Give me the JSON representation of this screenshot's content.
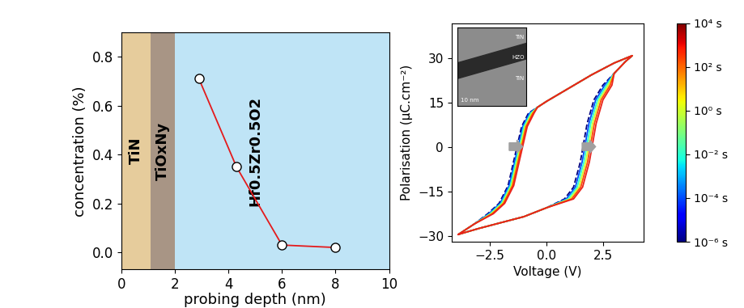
{
  "chart_data": [
    {
      "type": "line",
      "xlabel": "probing depth (nm)",
      "ylabel": "concentration (%)",
      "x": [
        2.9,
        4.3,
        6.0,
        8.0
      ],
      "values": [
        0.71,
        0.35,
        0.03,
        0.02
      ],
      "color": "#e41a1c",
      "marker": "o",
      "xlim": [
        0,
        10
      ],
      "xticks": [
        0,
        2,
        4,
        6,
        8,
        10
      ],
      "ylim": [
        -0.07,
        0.9
      ],
      "yticks": [
        0.0,
        0.2,
        0.4,
        0.6,
        0.8
      ],
      "regions": [
        {
          "label": "TiN",
          "start": 0,
          "end": 1.1,
          "color": "#e6cc9c"
        },
        {
          "label": "TiOxNy",
          "start": 1.1,
          "end": 2,
          "color": "#a89585"
        },
        {
          "label": "Hf0.5Zr0.5O2",
          "start": 2,
          "end": 10,
          "color": "#bfe4f6"
        }
      ]
    },
    {
      "type": "line",
      "xlabel": "Voltage (V)",
      "ylabel": "Polarisation (µC.cm⁻²)",
      "xlim": [
        -4.2,
        4.3
      ],
      "xticks": [
        {
          "value": -2.5,
          "label": "−2.5"
        },
        0.0,
        2.5
      ],
      "ylim": [
        -32,
        42
      ],
      "yticks": [
        {
          "value": -30,
          "label": "−30"
        },
        {
          "value": -15,
          "label": "−15"
        },
        0,
        15,
        30
      ],
      "series": [
        {
          "time": 1e-06,
          "color": "#00007f",
          "line_style": "dashed",
          "x": [
            -3.9,
            -3.0,
            -2.0,
            -1.0,
            0.0,
            0.8,
            1.2,
            1.5,
            1.8,
            2.1,
            2.5,
            3.0,
            3.5,
            3.8,
            3.0,
            2.0,
            1.0,
            0.0,
            -0.4,
            -0.8,
            -1.1,
            -1.4,
            -1.7,
            -2.1,
            -2.6,
            -3.2,
            -3.9
          ],
          "values": [
            -29.5,
            -27.5,
            -25.5,
            -23.5,
            -20.5,
            -17.5,
            -13.5,
            -5,
            8,
            16,
            21,
            25,
            29,
            31,
            28.5,
            24.5,
            20,
            15.5,
            13.5,
            11.5,
            7,
            -3,
            -13,
            -19,
            -22.5,
            -26,
            -29.5
          ]
        },
        {
          "time": 0.0001,
          "color": "#004cff",
          "line_style": "solid",
          "x": [
            -3.9,
            -3.0,
            -2.0,
            -1.0,
            0.0,
            0.88,
            1.28,
            1.58,
            1.88,
            2.18,
            2.58,
            3.0,
            3.5,
            3.8,
            3.0,
            2.0,
            1.0,
            0.0,
            -0.4,
            -0.75,
            -1.05,
            -1.35,
            -1.65,
            -2.05,
            -2.55,
            -3.2,
            -3.9
          ],
          "values": [
            -29.5,
            -27.5,
            -25.5,
            -23.5,
            -20.5,
            -17.5,
            -13.5,
            -5,
            8,
            16,
            21,
            25,
            29,
            31,
            28.5,
            24.5,
            20,
            15.5,
            13.5,
            11.5,
            7,
            -3,
            -13,
            -19,
            -22.5,
            -26,
            -29.5
          ]
        },
        {
          "time": 0.01,
          "color": "#29ffce",
          "line_style": "solid",
          "x": [
            -3.9,
            -3.0,
            -2.0,
            -1.0,
            0.0,
            0.96,
            1.36,
            1.66,
            1.96,
            2.26,
            2.66,
            3.0,
            3.5,
            3.8,
            3.0,
            2.0,
            1.0,
            0.0,
            -0.4,
            -0.7,
            -1.0,
            -1.3,
            -1.6,
            -2.0,
            -2.5,
            -3.2,
            -3.9
          ],
          "values": [
            -29.5,
            -27.5,
            -25.5,
            -23.5,
            -20.5,
            -17.5,
            -13.5,
            -5,
            8,
            16,
            21,
            25,
            29,
            31,
            28.5,
            24.5,
            20,
            15.5,
            13.5,
            11.5,
            7,
            -3,
            -13,
            -19,
            -22.5,
            -26,
            -29.5
          ]
        },
        {
          "time": 1,
          "color": "#ceff29",
          "line_style": "solid",
          "x": [
            -3.9,
            -3.0,
            -2.0,
            -1.0,
            0.0,
            1.04,
            1.44,
            1.74,
            2.04,
            2.34,
            2.74,
            3.0,
            3.5,
            3.8,
            3.0,
            2.0,
            1.0,
            0.0,
            -0.4,
            -0.65,
            -0.95,
            -1.25,
            -1.55,
            -1.95,
            -2.45,
            -3.2,
            -3.9
          ],
          "values": [
            -29.5,
            -27.5,
            -25.5,
            -23.5,
            -20.5,
            -17.5,
            -13.5,
            -5,
            8,
            16,
            21,
            25,
            29,
            31,
            28.5,
            24.5,
            20,
            15.5,
            13.5,
            11.5,
            7,
            -3,
            -13,
            -19,
            -22.5,
            -26,
            -29.5
          ]
        },
        {
          "time": 100,
          "color": "#ff4800",
          "line_style": "solid",
          "x": [
            -3.9,
            -3.0,
            -2.0,
            -1.0,
            0.0,
            1.12,
            1.52,
            1.82,
            2.12,
            2.42,
            2.82,
            3.0,
            3.5,
            3.8,
            3.0,
            2.0,
            1.0,
            0.0,
            -0.4,
            -0.6,
            -0.9,
            -1.2,
            -1.5,
            -1.9,
            -2.4,
            -3.2,
            -3.9
          ],
          "values": [
            -29.5,
            -27.5,
            -25.5,
            -23.5,
            -20.5,
            -17.5,
            -13.5,
            -5,
            8,
            16,
            21,
            25,
            29,
            31,
            28.5,
            24.5,
            20,
            15.5,
            13.5,
            11.5,
            7,
            -3,
            -13,
            -19,
            -22.5,
            -26,
            -29.5
          ]
        },
        {
          "time": 10000,
          "color": "#e8231c",
          "line_style": "solid",
          "x": [
            -3.9,
            -3.0,
            -2.0,
            -1.0,
            0.0,
            1.2,
            1.6,
            1.9,
            2.2,
            2.5,
            2.9,
            3.0,
            3.5,
            3.8,
            3.0,
            2.0,
            1.0,
            0.0,
            -0.4,
            -0.55,
            -0.85,
            -1.15,
            -1.45,
            -1.85,
            -2.35,
            -3.2,
            -3.9
          ],
          "values": [
            -29.5,
            -27.5,
            -25.5,
            -23.5,
            -20.5,
            -17.5,
            -13.5,
            -5,
            8,
            16,
            21,
            25,
            29,
            31,
            28.5,
            24.5,
            20,
            15.5,
            13.5,
            11.5,
            7,
            -3,
            -13,
            -19,
            -22.5,
            -26,
            -29.5
          ]
        }
      ],
      "colorbar": {
        "range": [
          1e-06,
          10000
        ],
        "ticks": [
          {
            "value": 1e-06,
            "label": "10⁻⁶ s"
          },
          {
            "value": 0.0001,
            "label": "10⁻⁴ s"
          },
          {
            "value": 0.01,
            "label": "10⁻² s"
          },
          {
            "value": 1,
            "label": "10⁰ s"
          },
          {
            "value": 100,
            "label": "10² s"
          },
          {
            "value": 10000,
            "label": "10⁴ s"
          }
        ]
      },
      "inset": {
        "labels": [
          "TiN",
          "HZO",
          "TiN"
        ],
        "scale_bar": "10 nm"
      }
    }
  ]
}
